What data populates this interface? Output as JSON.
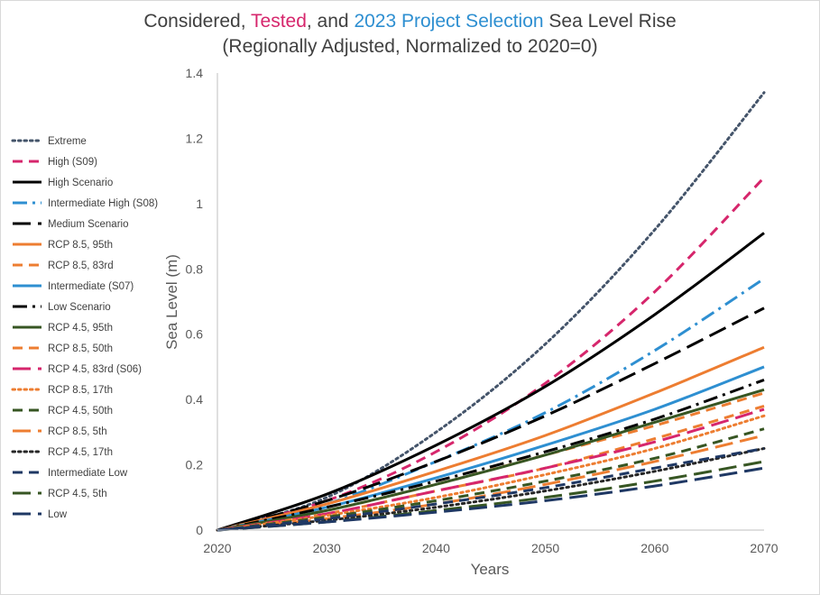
{
  "title": {
    "line1_part1": "Considered, ",
    "line1_part2": "Tested",
    "line1_part3": ", and ",
    "line1_part4": "2023 Project Selection",
    "line1_part5": " Sea Level Rise",
    "line2": "(Regionally Adjusted, Normalized to 2020=0)",
    "colors": {
      "default": "#404040",
      "tested": "#d6266c",
      "selected": "#2e8fd1"
    }
  },
  "chart_data": {
    "type": "line",
    "title": "Considered, Tested, and 2023 Project Selection Sea Level Rise (Regionally Adjusted, Normalized to 2020=0)",
    "xlabel": "Years",
    "ylabel": "Sea Level (m)",
    "xlim": [
      2020,
      2070
    ],
    "ylim": [
      0,
      1.4
    ],
    "xticks": [
      "2020",
      "2030",
      "2040",
      "2050",
      "2060",
      "2070"
    ],
    "yticks": [
      "0",
      "0.2",
      "0.4",
      "0.6",
      "0.8",
      "1",
      "1.2",
      "1.4"
    ],
    "grid": false,
    "legend_position": "left",
    "x": [
      2020,
      2030,
      2040,
      2050,
      2060,
      2070
    ],
    "series": [
      {
        "name": "Extreme",
        "color": "#44546a",
        "dash": "dot",
        "values": [
          0,
          0.1,
          0.3,
          0.57,
          0.92,
          1.34
        ]
      },
      {
        "name": "High (S09)",
        "color": "#d6266c",
        "dash": "dash",
        "values": [
          0,
          0.09,
          0.24,
          0.45,
          0.73,
          1.08
        ]
      },
      {
        "name": "High Scenario",
        "color": "#000000",
        "dash": "solid",
        "values": [
          0,
          0.11,
          0.26,
          0.44,
          0.66,
          0.91
        ]
      },
      {
        "name": "Intermediate High (S08)",
        "color": "#2e8fd1",
        "dash": "dashdot",
        "values": [
          0,
          0.08,
          0.21,
          0.36,
          0.55,
          0.77
        ]
      },
      {
        "name": "Medium Scenario",
        "color": "#000000",
        "dash": "longdash",
        "values": [
          0,
          0.09,
          0.21,
          0.35,
          0.51,
          0.68
        ]
      },
      {
        "name": "RCP 8.5, 95th",
        "color": "#ed7d31",
        "dash": "solid",
        "values": [
          0,
          0.08,
          0.18,
          0.29,
          0.42,
          0.56
        ]
      },
      {
        "name": "RCP 8.5, 83rd",
        "color": "#ed7d31",
        "dash": "dash",
        "values": [
          0,
          0.06,
          0.14,
          0.23,
          0.32,
          0.42
        ]
      },
      {
        "name": "Intermediate (S07)",
        "color": "#2e8fd1",
        "dash": "solid",
        "values": [
          0,
          0.07,
          0.16,
          0.26,
          0.37,
          0.5
        ]
      },
      {
        "name": "Low Scenario",
        "color": "#000000",
        "dash": "dashdot",
        "values": [
          0,
          0.07,
          0.15,
          0.24,
          0.34,
          0.46
        ]
      },
      {
        "name": "RCP 4.5, 95th",
        "color": "#375623",
        "dash": "solid",
        "values": [
          0,
          0.06,
          0.14,
          0.23,
          0.33,
          0.43
        ]
      },
      {
        "name": "RCP 8.5, 50th",
        "color": "#ed7d31",
        "dash": "dash",
        "values": [
          0,
          0.05,
          0.12,
          0.19,
          0.28,
          0.38
        ]
      },
      {
        "name": "RCP 4.5, 83rd (S06)",
        "color": "#d6266c",
        "dash": "longdash",
        "values": [
          0,
          0.05,
          0.12,
          0.19,
          0.27,
          0.37
        ]
      },
      {
        "name": "RCP 8.5, 17th",
        "color": "#ed7d31",
        "dash": "dot",
        "values": [
          0,
          0.045,
          0.1,
          0.17,
          0.25,
          0.35
        ]
      },
      {
        "name": "RCP 4.5, 50th",
        "color": "#375623",
        "dash": "dash",
        "values": [
          0,
          0.04,
          0.09,
          0.15,
          0.22,
          0.31
        ]
      },
      {
        "name": "RCP 8.5, 5th",
        "color": "#ed7d31",
        "dash": "longdash",
        "values": [
          0,
          0.035,
          0.08,
          0.14,
          0.21,
          0.29
        ]
      },
      {
        "name": "RCP 4.5, 17th",
        "color": "#262626",
        "dash": "dot",
        "values": [
          0,
          0.03,
          0.07,
          0.12,
          0.18,
          0.25
        ]
      },
      {
        "name": "Intermediate Low",
        "color": "#1f3864",
        "dash": "dash",
        "values": [
          0,
          0.035,
          0.08,
          0.13,
          0.19,
          0.25
        ]
      },
      {
        "name": "RCP 4.5, 5th",
        "color": "#375623",
        "dash": "longdash",
        "values": [
          0,
          0.025,
          0.06,
          0.1,
          0.15,
          0.21
        ]
      },
      {
        "name": "Low",
        "color": "#1f3864",
        "dash": "longdash",
        "values": [
          0,
          0.025,
          0.055,
          0.09,
          0.135,
          0.19
        ]
      }
    ]
  }
}
